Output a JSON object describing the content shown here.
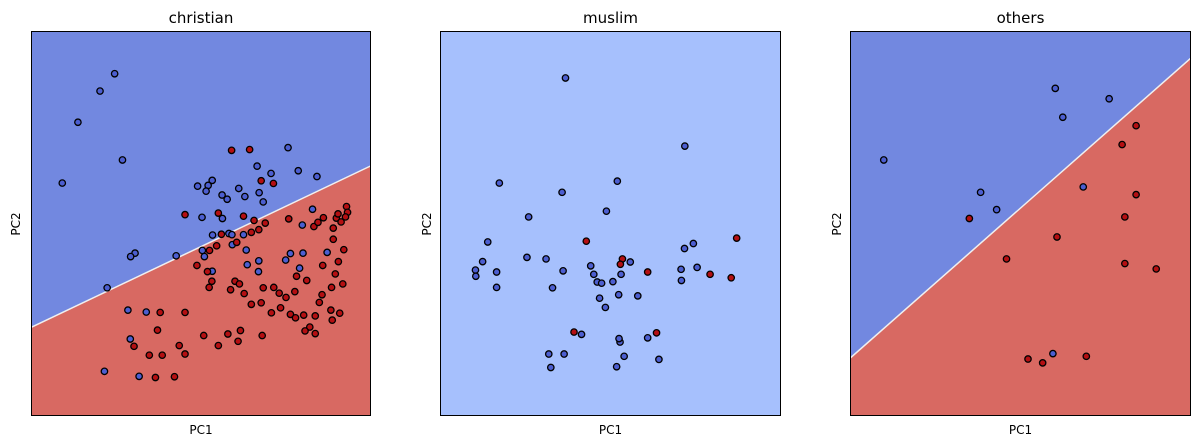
{
  "colors": {
    "region_blue": "#7288e0",
    "region_red": "#d86962",
    "region_light": "#a6c0fd",
    "point_blue": "#4c5ed0",
    "point_red": "#b40f12",
    "edge": "#000000",
    "boundary": "#f0f0f0"
  },
  "chart_data": [
    {
      "type": "scatter",
      "title": "christian",
      "xlabel": "PC1",
      "ylabel": "PC2",
      "xlim": [
        0,
        100
      ],
      "ylim": [
        0,
        100
      ],
      "ticks": "none",
      "grid": false,
      "background": "decision-regions",
      "boundary": [
        [
          0,
          23
        ],
        [
          100,
          65
        ]
      ],
      "above_region": "blue",
      "below_region": "red",
      "points_blue": [
        [
          24.6,
          88.9
        ],
        [
          20.3,
          84.4
        ],
        [
          9.2,
          60.5
        ],
        [
          13.8,
          76.3
        ],
        [
          26.9,
          66.5
        ],
        [
          56.2,
          57.4
        ],
        [
          53.3,
          61.2
        ],
        [
          52.1,
          59.9
        ],
        [
          51.5,
          58.4
        ],
        [
          57.7,
          56.3
        ],
        [
          61.1,
          59.1
        ],
        [
          62.9,
          57.0
        ],
        [
          67.1,
          58.0
        ],
        [
          68.3,
          55.6
        ],
        [
          70.6,
          63.0
        ],
        [
          66.5,
          64.9
        ],
        [
          75.6,
          69.7
        ],
        [
          78.6,
          63.7
        ],
        [
          84.1,
          62.2
        ],
        [
          58.2,
          47.4
        ],
        [
          49.0,
          59.7
        ],
        [
          53.4,
          47.0
        ],
        [
          59.1,
          47.1
        ],
        [
          50.3,
          51.6
        ],
        [
          56.3,
          51.3
        ],
        [
          59.2,
          44.5
        ],
        [
          62.5,
          47.1
        ],
        [
          63.3,
          43.1
        ],
        [
          76.3,
          42.2
        ],
        [
          63.6,
          39.3
        ],
        [
          51.0,
          41.4
        ],
        [
          50.4,
          43.0
        ],
        [
          67.0,
          40.3
        ],
        [
          66.9,
          37.5
        ],
        [
          79.0,
          38.4
        ],
        [
          80.0,
          42.3
        ],
        [
          74.9,
          40.5
        ],
        [
          30.6,
          42.3
        ],
        [
          29.3,
          41.4
        ],
        [
          42.7,
          41.6
        ],
        [
          53.3,
          37.6
        ],
        [
          79.8,
          49.6
        ],
        [
          82.8,
          53.7
        ],
        [
          87.1,
          42.5
        ],
        [
          22.4,
          33.3
        ],
        [
          33.9,
          27.0
        ],
        [
          28.5,
          27.5
        ],
        [
          29.2,
          20.0
        ],
        [
          31.8,
          10.3
        ],
        [
          21.6,
          11.6
        ]
      ],
      "points_red": [
        [
          59.0,
          69.0
        ],
        [
          64.3,
          69.2
        ],
        [
          67.7,
          61.1
        ],
        [
          71.3,
          60.4
        ],
        [
          45.3,
          52.3
        ],
        [
          55.1,
          52.7
        ],
        [
          62.5,
          51.9
        ],
        [
          65.6,
          50.8
        ],
        [
          75.8,
          51.2
        ],
        [
          83.2,
          49.2
        ],
        [
          88.9,
          48.8
        ],
        [
          89.8,
          51.4
        ],
        [
          90.3,
          52.5
        ],
        [
          91.2,
          50.4
        ],
        [
          92.8,
          54.4
        ],
        [
          93.1,
          52.9
        ],
        [
          92.5,
          51.7
        ],
        [
          86.0,
          51.5
        ],
        [
          84.4,
          50.3
        ],
        [
          68.9,
          50.1
        ],
        [
          67.0,
          48.4
        ],
        [
          64.8,
          47.7
        ],
        [
          60.5,
          45.1
        ],
        [
          56.0,
          47.2
        ],
        [
          54.6,
          44.2
        ],
        [
          52.5,
          43.0
        ],
        [
          48.8,
          39.1
        ],
        [
          51.9,
          37.5
        ],
        [
          53.2,
          35.0
        ],
        [
          52.4,
          33.4
        ],
        [
          58.7,
          32.8
        ],
        [
          60.0,
          35.0
        ],
        [
          61.3,
          34.3
        ],
        [
          62.7,
          31.8
        ],
        [
          64.8,
          29.0
        ],
        [
          67.7,
          29.4
        ],
        [
          68.3,
          33.3
        ],
        [
          71.4,
          33.4
        ],
        [
          73.0,
          31.9
        ],
        [
          75.0,
          30.8
        ],
        [
          78.1,
          36.3
        ],
        [
          76.3,
          26.4
        ],
        [
          77.8,
          25.5
        ],
        [
          80.2,
          26.2
        ],
        [
          84.8,
          29.5
        ],
        [
          83.6,
          26.0
        ],
        [
          82.0,
          23.1
        ],
        [
          80.6,
          22.1
        ],
        [
          83.6,
          21.4
        ],
        [
          85.6,
          31.5
        ],
        [
          88.4,
          33.4
        ],
        [
          89.5,
          36.9
        ],
        [
          90.4,
          40.1
        ],
        [
          92.0,
          43.2
        ],
        [
          88.9,
          45.9
        ],
        [
          85.8,
          39.1
        ],
        [
          81.1,
          35.2
        ],
        [
          77.6,
          32.3
        ],
        [
          73.4,
          28.1
        ],
        [
          70.7,
          26.8
        ],
        [
          68.0,
          20.9
        ],
        [
          61.6,
          22.2
        ],
        [
          60.9,
          19.4
        ],
        [
          45.3,
          26.9
        ],
        [
          38.0,
          26.9
        ],
        [
          37.2,
          22.3
        ],
        [
          30.3,
          18.1
        ],
        [
          34.8,
          15.8
        ],
        [
          38.6,
          15.8
        ],
        [
          43.6,
          18.3
        ],
        [
          36.6,
          10.0
        ],
        [
          42.2,
          10.2
        ],
        [
          45.3,
          16.1
        ],
        [
          50.8,
          20.9
        ],
        [
          55.1,
          18.3
        ],
        [
          57.9,
          21.3
        ],
        [
          88.2,
          27.5
        ],
        [
          88.6,
          24.9
        ],
        [
          90.8,
          26.7
        ],
        [
          91.7,
          34.3
        ]
      ]
    },
    {
      "type": "scatter",
      "title": "muslim",
      "xlabel": "PC1",
      "ylabel": "PC2",
      "xlim": [
        0,
        100
      ],
      "ylim": [
        0,
        100
      ],
      "ticks": "none",
      "grid": false,
      "background": "decision-regions",
      "region": "light-blue",
      "points_blue": [
        [
          36.8,
          87.8
        ],
        [
          71.8,
          70.1
        ],
        [
          17.4,
          60.5
        ],
        [
          52.0,
          61.0
        ],
        [
          35.8,
          58.1
        ],
        [
          26.0,
          51.7
        ],
        [
          48.8,
          53.2
        ],
        [
          14.0,
          45.2
        ],
        [
          31.1,
          40.8
        ],
        [
          25.5,
          41.2
        ],
        [
          12.5,
          40.1
        ],
        [
          10.4,
          37.9
        ],
        [
          16.6,
          37.4
        ],
        [
          10.5,
          36.3
        ],
        [
          16.6,
          33.4
        ],
        [
          33.0,
          33.3
        ],
        [
          36.1,
          37.7
        ],
        [
          44.2,
          39.0
        ],
        [
          45.1,
          36.8
        ],
        [
          46.1,
          34.8
        ],
        [
          55.8,
          40.0
        ],
        [
          53.1,
          36.8
        ],
        [
          50.7,
          34.9
        ],
        [
          47.4,
          34.5
        ],
        [
          46.8,
          30.6
        ],
        [
          48.5,
          28.2
        ],
        [
          52.4,
          31.5
        ],
        [
          58.0,
          31.2
        ],
        [
          70.8,
          35.2
        ],
        [
          71.7,
          43.5
        ],
        [
          74.3,
          44.8
        ],
        [
          75.4,
          38.6
        ],
        [
          70.7,
          38.1
        ],
        [
          52.8,
          19.2
        ],
        [
          54.0,
          15.5
        ],
        [
          51.8,
          12.8
        ],
        [
          31.9,
          16.1
        ],
        [
          36.4,
          16.1
        ],
        [
          32.5,
          12.6
        ],
        [
          41.5,
          21.2
        ],
        [
          52.5,
          20.1
        ],
        [
          64.2,
          14.7
        ],
        [
          60.9,
          20.3
        ]
      ],
      "points_red": [
        [
          42.9,
          45.4
        ],
        [
          53.5,
          40.8
        ],
        [
          60.9,
          37.4
        ],
        [
          79.2,
          36.8
        ],
        [
          87.0,
          46.2
        ],
        [
          85.4,
          35.9
        ],
        [
          39.3,
          21.8
        ],
        [
          63.5,
          21.6
        ],
        [
          52.9,
          39.4
        ]
      ]
    },
    {
      "type": "scatter",
      "title": "others",
      "xlabel": "PC1",
      "ylabel": "PC2",
      "xlim": [
        0,
        100
      ],
      "ylim": [
        0,
        100
      ],
      "ticks": "none",
      "grid": false,
      "background": "decision-regions",
      "boundary": [
        [
          0,
          15
        ],
        [
          100,
          93
        ]
      ],
      "above_region": "blue",
      "below_region": "red",
      "points_blue": [
        [
          60.2,
          85.1
        ],
        [
          76.0,
          82.4
        ],
        [
          62.4,
          77.6
        ],
        [
          9.9,
          66.5
        ],
        [
          38.3,
          58.1
        ],
        [
          43.0,
          53.6
        ],
        [
          68.4,
          59.5
        ],
        [
          59.5,
          16.2
        ]
      ],
      "points_red": [
        [
          83.9,
          75.4
        ],
        [
          79.8,
          70.5
        ],
        [
          83.9,
          57.5
        ],
        [
          80.6,
          51.7
        ],
        [
          35.0,
          51.3
        ],
        [
          60.7,
          46.5
        ],
        [
          45.9,
          40.8
        ],
        [
          80.6,
          39.6
        ],
        [
          89.8,
          38.2
        ],
        [
          56.5,
          13.8
        ],
        [
          69.3,
          15.5
        ],
        [
          52.2,
          14.8
        ]
      ]
    }
  ]
}
